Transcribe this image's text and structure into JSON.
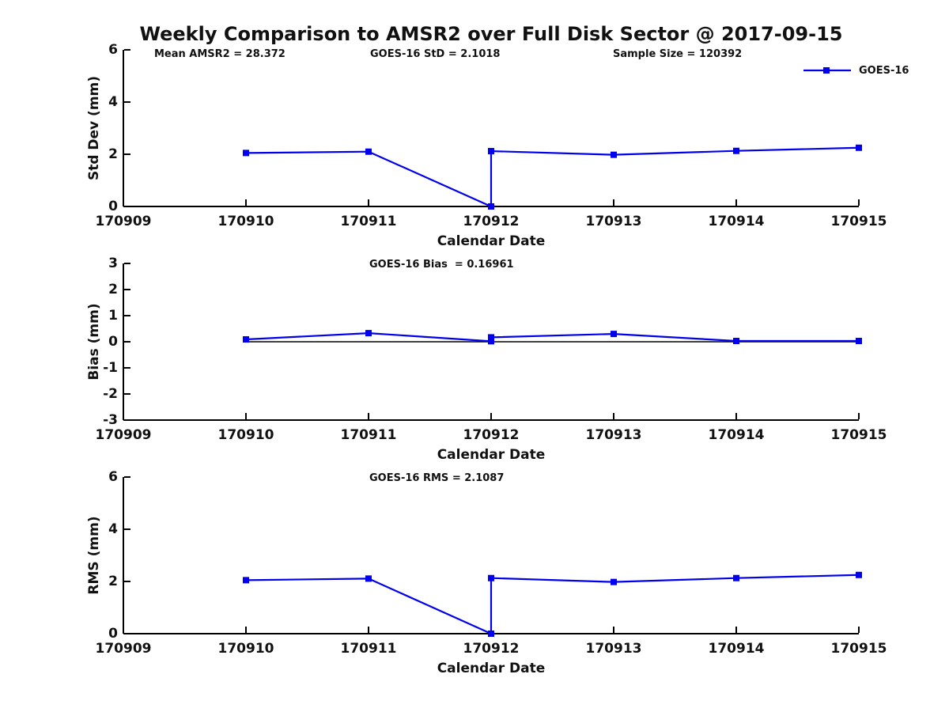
{
  "figure": {
    "title": "Weekly Comparison to AMSR2 over Full Disk Sector @ 2017-09-15",
    "background": "#FFFFFF"
  },
  "stats_row": {
    "mean_amsr2": "Mean AMSR2 = 28.372",
    "goes16_std": "GOES-16 StD = 2.1018",
    "sample_size": "Sample Size = 120392"
  },
  "legend": {
    "label": "GOES-16",
    "color": "#0000EE",
    "marker": "square",
    "position": "top-right-outside"
  },
  "colors": {
    "series": "#0000EE",
    "axis": "#000000",
    "zero_line": "#000000",
    "text": "#111111"
  },
  "chart_data": [
    {
      "id": "std-dev",
      "type": "line",
      "subtitle": "",
      "ylabel": "Std Dev (mm)",
      "xlabel": "Calendar Date",
      "xlim": [
        170909,
        170915
      ],
      "ylim": [
        0,
        6
      ],
      "xticks": [
        "170909",
        "170910",
        "170911",
        "170912",
        "170913",
        "170914",
        "170915"
      ],
      "yticks": [
        "0",
        "2",
        "4",
        "6"
      ],
      "grid": false,
      "series": [
        {
          "name": "GOES-16",
          "color": "#0000EE",
          "marker": "square",
          "x": [
            170910,
            170911,
            170912,
            170912,
            170913,
            170914,
            170915
          ],
          "y": [
            2.05,
            2.1,
            0.0,
            2.12,
            1.98,
            2.13,
            2.25
          ]
        }
      ]
    },
    {
      "id": "bias",
      "type": "line",
      "subtitle": "GOES-16 Bias  = 0.16961",
      "ylabel": "Bias (mm)",
      "xlabel": "Calendar Date",
      "xlim": [
        170909,
        170915
      ],
      "ylim": [
        -3,
        3
      ],
      "xticks": [
        "170909",
        "170910",
        "170911",
        "170912",
        "170913",
        "170914",
        "170915"
      ],
      "yticks": [
        "-3",
        "-2",
        "-1",
        "0",
        "1",
        "2",
        "3"
      ],
      "grid": false,
      "series": [
        {
          "name": "zero-reference",
          "color": "#000000",
          "marker": "none",
          "x": [
            170910,
            170915
          ],
          "y": [
            0,
            0
          ]
        },
        {
          "name": "GOES-16",
          "color": "#0000EE",
          "marker": "square",
          "x": [
            170910,
            170911,
            170912,
            170912,
            170913,
            170914,
            170915
          ],
          "y": [
            0.09,
            0.33,
            0.02,
            0.17,
            0.3,
            0.03,
            0.03
          ]
        }
      ]
    },
    {
      "id": "rms",
      "type": "line",
      "subtitle": "GOES-16 RMS = 2.1087",
      "ylabel": "RMS (mm)",
      "xlabel": "Calendar Date",
      "xlim": [
        170909,
        170915
      ],
      "ylim": [
        0,
        6
      ],
      "xticks": [
        "170909",
        "170910",
        "170911",
        "170912",
        "170913",
        "170914",
        "170915"
      ],
      "yticks": [
        "0",
        "2",
        "4",
        "6"
      ],
      "grid": false,
      "series": [
        {
          "name": "GOES-16",
          "color": "#0000EE",
          "marker": "square",
          "x": [
            170910,
            170911,
            170912,
            170912,
            170913,
            170914,
            170915
          ],
          "y": [
            2.05,
            2.11,
            0.0,
            2.13,
            1.98,
            2.13,
            2.25
          ]
        }
      ]
    }
  ]
}
